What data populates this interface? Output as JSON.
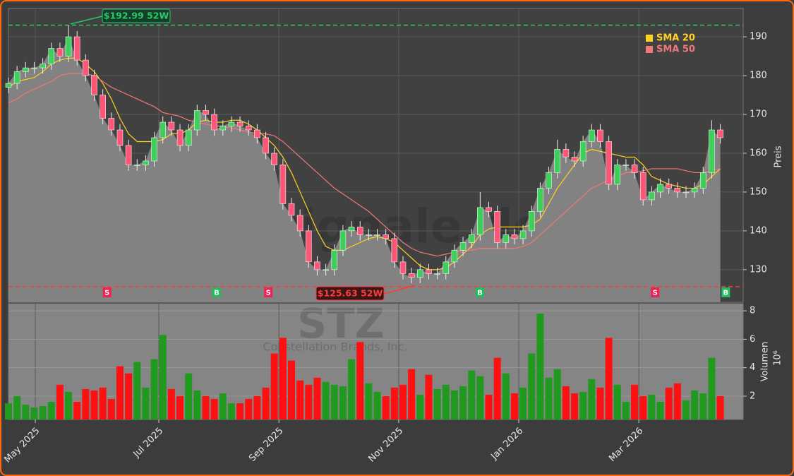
{
  "chart_data": {
    "type": "candlestick",
    "symbol": "STZ",
    "company": "Constellation Brands, Inc.",
    "watermark": "forexsignale.de",
    "y_label": "Preis",
    "x": [
      0,
      3,
      6,
      9,
      12,
      15,
      18,
      21,
      24,
      27,
      30,
      33,
      36,
      39,
      42,
      45,
      48,
      51,
      54,
      57,
      60,
      63,
      66,
      69,
      72,
      75,
      78,
      81,
      84,
      87,
      90,
      93,
      96,
      99,
      102,
      105,
      108,
      111,
      114,
      117,
      120,
      123,
      126,
      129,
      132,
      135,
      138,
      141,
      144,
      147,
      150,
      153,
      156,
      159,
      162,
      165,
      168,
      171,
      174,
      177,
      180,
      183,
      186,
      189,
      192,
      195,
      198,
      201,
      204,
      207,
      210,
      213,
      216,
      219,
      222,
      225,
      228,
      231,
      234,
      237,
      240,
      243,
      246,
      249
    ],
    "open": [
      177,
      178,
      181,
      182,
      182,
      183,
      187,
      185,
      190,
      184,
      180,
      175,
      169,
      166,
      162,
      157,
      157,
      158,
      164,
      168,
      166,
      162,
      166,
      171,
      170,
      166,
      167,
      168,
      167,
      166,
      164,
      160,
      157,
      147,
      144,
      140,
      132,
      130,
      130,
      135,
      140,
      141,
      139,
      139,
      139,
      138,
      132,
      129,
      128,
      130,
      129,
      129,
      132,
      135,
      137,
      139,
      146,
      145,
      137,
      139,
      138,
      140,
      145,
      151,
      155,
      161,
      159,
      158,
      163,
      166,
      163,
      152,
      157,
      157,
      155,
      148,
      150,
      152,
      151,
      150,
      150,
      151,
      155,
      166
    ],
    "high": [
      179.5,
      182.5,
      183.5,
      183.5,
      184.5,
      188.5,
      188.5,
      193,
      191.5,
      185.5,
      181.5,
      176.5,
      170.5,
      167.5,
      163.5,
      158.5,
      159.5,
      165.5,
      169.5,
      169.5,
      167.5,
      167.5,
      172.5,
      172.5,
      171.5,
      168.5,
      169.5,
      169.5,
      168.5,
      167.5,
      165.5,
      161.5,
      158.5,
      148.5,
      145.5,
      141.5,
      133.5,
      131.5,
      136.5,
      141.5,
      142.5,
      142.5,
      140.5,
      140.5,
      140.5,
      139.5,
      133.5,
      130.5,
      131.5,
      131.5,
      130.5,
      133.5,
      136.5,
      138.5,
      140.5,
      150,
      147.5,
      146.5,
      140.5,
      140.5,
      141.5,
      146.5,
      152.5,
      156.5,
      163.5,
      162.5,
      160.5,
      164.5,
      167.5,
      167.5,
      164.5,
      158.5,
      158.5,
      158.5,
      156.5,
      151.5,
      153.5,
      153.5,
      152.5,
      151.5,
      152.5,
      156.5,
      168.5,
      167.5
    ],
    "low": [
      175.5,
      176.5,
      179.5,
      180.5,
      180.5,
      181.5,
      183.5,
      183.5,
      182.5,
      178.5,
      173.5,
      167.5,
      164.5,
      160.5,
      155.5,
      155.5,
      155.5,
      156.5,
      162.5,
      164.5,
      160.5,
      160.5,
      164.5,
      168.5,
      164.5,
      164.5,
      165.5,
      165.5,
      164.5,
      162.5,
      158.5,
      155.5,
      145.5,
      142.5,
      138.5,
      130.5,
      128.5,
      128.5,
      128.5,
      133.5,
      138.5,
      137.5,
      137.5,
      137.5,
      136.5,
      130.5,
      127.5,
      126.5,
      126.5,
      127.5,
      127.5,
      127.5,
      130.5,
      133.5,
      135.5,
      137.5,
      143.5,
      135.5,
      135.5,
      136.5,
      136.5,
      138.5,
      143.5,
      149.5,
      153.5,
      157.5,
      156.5,
      156.5,
      161.5,
      161.5,
      150.5,
      150.5,
      155.5,
      153.5,
      146.5,
      146.5,
      148.5,
      149.5,
      148.5,
      148.5,
      148.5,
      149.5,
      153.5,
      162.5
    ],
    "close": [
      178,
      181,
      182,
      182,
      183,
      187,
      185,
      190,
      184,
      180,
      175,
      169,
      166,
      162,
      157,
      157,
      158,
      164,
      168,
      166,
      162,
      166,
      171,
      170,
      166,
      167,
      168,
      167,
      166,
      164,
      160,
      157,
      147,
      144,
      140,
      132,
      130,
      130,
      135,
      140,
      141,
      139,
      139,
      139,
      138,
      132,
      129,
      128,
      130,
      129,
      129,
      132,
      135,
      137,
      139,
      146,
      145,
      137,
      139,
      138,
      140,
      145,
      151,
      155,
      161,
      159,
      158,
      163,
      166,
      163,
      152,
      157,
      157,
      155,
      148,
      150,
      152,
      151,
      150,
      150,
      151,
      155,
      166,
      164
    ],
    "up_color": "#3ecf5a",
    "down_color": "#ff5577",
    "area_color": "#868686",
    "series": [
      {
        "name": "SMA 20",
        "color": "#ffd21f",
        "values": [
          177,
          178.5,
          179,
          179.5,
          181,
          183,
          184,
          184.5,
          184.5,
          183,
          181,
          178,
          174,
          169,
          165,
          163,
          163,
          163,
          163.5,
          165,
          165,
          166,
          168,
          168.5,
          168,
          168,
          168.5,
          168.5,
          167.5,
          166,
          164,
          162,
          159,
          155,
          150,
          145,
          140,
          136,
          135,
          135,
          136,
          137,
          138,
          138.5,
          138,
          137,
          135,
          133,
          131,
          130,
          130,
          130.5,
          132,
          134,
          136,
          139,
          140.5,
          141,
          141,
          141,
          141,
          141.5,
          143,
          147,
          151,
          154,
          157,
          160,
          161,
          160.5,
          160,
          159.5,
          159,
          159,
          157,
          154,
          153,
          152,
          151.5,
          151,
          151,
          152,
          154,
          156
        ]
      },
      {
        "name": "SMA 50",
        "color": "#f07878",
        "values": [
          173,
          174,
          175.5,
          176.5,
          177.5,
          178.5,
          180,
          180.5,
          180.5,
          180.5,
          180,
          178.5,
          177,
          176,
          175,
          174,
          173,
          172,
          170.5,
          170,
          169.5,
          168.5,
          168,
          167.5,
          167,
          167,
          166.5,
          166,
          165.5,
          165,
          165,
          164.5,
          163,
          161,
          159,
          157,
          155,
          153,
          151,
          149.5,
          148,
          146.5,
          145,
          143,
          141,
          139,
          137,
          135.5,
          134.5,
          134,
          133.5,
          134,
          134.5,
          135,
          135,
          135.5,
          135.5,
          135.5,
          135.5,
          135.5,
          136,
          137,
          139,
          141,
          143,
          145,
          147,
          149,
          151,
          152,
          153,
          154,
          155,
          155,
          155.5,
          156,
          156,
          156,
          156,
          155.5,
          155,
          155,
          155.5,
          156
        ]
      }
    ],
    "annotations": [
      {
        "label": "$192.99 52W",
        "value": 192.99,
        "color": "#2ec76a"
      },
      {
        "label": "$125.63 52W",
        "value": 125.63,
        "color": "#ff3b3b"
      }
    ],
    "signals": [
      {
        "label": "S",
        "x": 34.5
      },
      {
        "label": "B",
        "x": 72.8
      },
      {
        "label": "S",
        "x": 90.9
      },
      {
        "label": "B",
        "x": 164.9
      },
      {
        "label": "S",
        "x": 226.2
      },
      {
        "label": "B",
        "x": 250.9
      }
    ],
    "xlim": [
      0,
      257
    ],
    "xticks": [
      {
        "value": 9.4,
        "label": "May 2025"
      },
      {
        "value": 52.6,
        "label": "Jul 2025"
      },
      {
        "value": 94.6,
        "label": "Sep 2025"
      },
      {
        "value": 136.5,
        "label": "Nov 2025"
      },
      {
        "value": 178.5,
        "label": "Jan 2026"
      },
      {
        "value": 220.5,
        "label": "Mar 2026"
      }
    ],
    "ylim": [
      121.6,
      197.3
    ],
    "yticks": [
      130,
      140,
      150,
      160,
      170,
      180,
      190
    ],
    "grid": true,
    "legend": "upper right",
    "volume": {
      "label": "Volumen",
      "unit": "10⁶",
      "up_color": "#1f9a1f",
      "down_color": "#ff1010",
      "values": [
        1.5,
        2.0,
        1.4,
        1.2,
        1.3,
        1.6,
        2.8,
        2.3,
        1.6,
        2.5,
        2.4,
        2.6,
        1.8,
        4.1,
        3.6,
        4.4,
        2.6,
        4.6,
        6.3,
        2.5,
        2.0,
        3.6,
        2.4,
        2.0,
        1.8,
        2.2,
        1.5,
        1.5,
        1.8,
        2.0,
        2.6,
        5.0,
        6.1,
        4.5,
        3.1,
        2.8,
        3.3,
        3.0,
        2.8,
        2.7,
        4.6,
        5.8,
        2.9,
        2.3,
        2.0,
        2.6,
        2.8,
        3.9,
        2.1,
        3.5,
        2.5,
        2.8,
        2.4,
        2.7,
        3.8,
        3.4,
        2.1,
        4.7,
        3.6,
        2.2,
        2.6,
        5.0,
        7.8,
        3.3,
        3.9,
        2.7,
        2.2,
        2.3,
        3.2,
        2.6,
        6.1,
        2.8,
        1.6,
        2.8,
        2.0,
        2.1,
        1.6,
        2.6,
        2.9,
        1.7,
        2.4,
        2.2,
        4.7,
        2.0
      ],
      "ylim": [
        0.36,
        8.5
      ],
      "yticks": [
        2,
        4,
        6,
        8
      ]
    }
  }
}
